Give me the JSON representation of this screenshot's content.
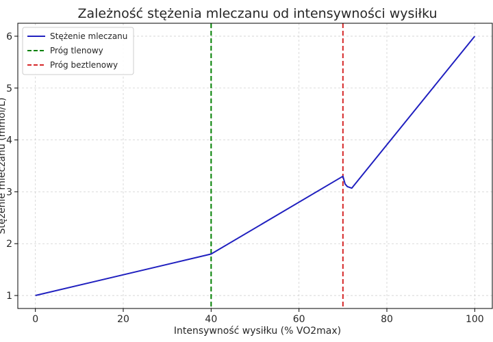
{
  "chart_data": {
    "type": "line",
    "title": "Zależność stężenia mleczanu od intensywności wysiłku",
    "xlabel": "Intensywność wysiłku (% VO2max)",
    "ylabel": "Stężenie mleczanu (mmol/L)",
    "xlim": [
      -4,
      104
    ],
    "ylim": [
      0.75,
      6.25
    ],
    "xticks": [
      0,
      20,
      40,
      60,
      80,
      100
    ],
    "yticks": [
      1,
      2,
      3,
      4,
      5,
      6
    ],
    "grid": true,
    "legend_position": "top-left",
    "series": [
      {
        "name": "Stężenie mleczanu",
        "color": "#1f1fbf",
        "x": [
          0,
          40,
          70,
          70.5,
          71,
          72,
          100
        ],
        "y": [
          1.0,
          1.8,
          3.3,
          3.15,
          3.1,
          3.07,
          6.0
        ]
      }
    ],
    "vlines": [
      {
        "name": "Próg tlenowy",
        "x": 40,
        "color": "#008000"
      },
      {
        "name": "Próg beztlenowy",
        "x": 70,
        "color": "#d62728"
      }
    ]
  }
}
